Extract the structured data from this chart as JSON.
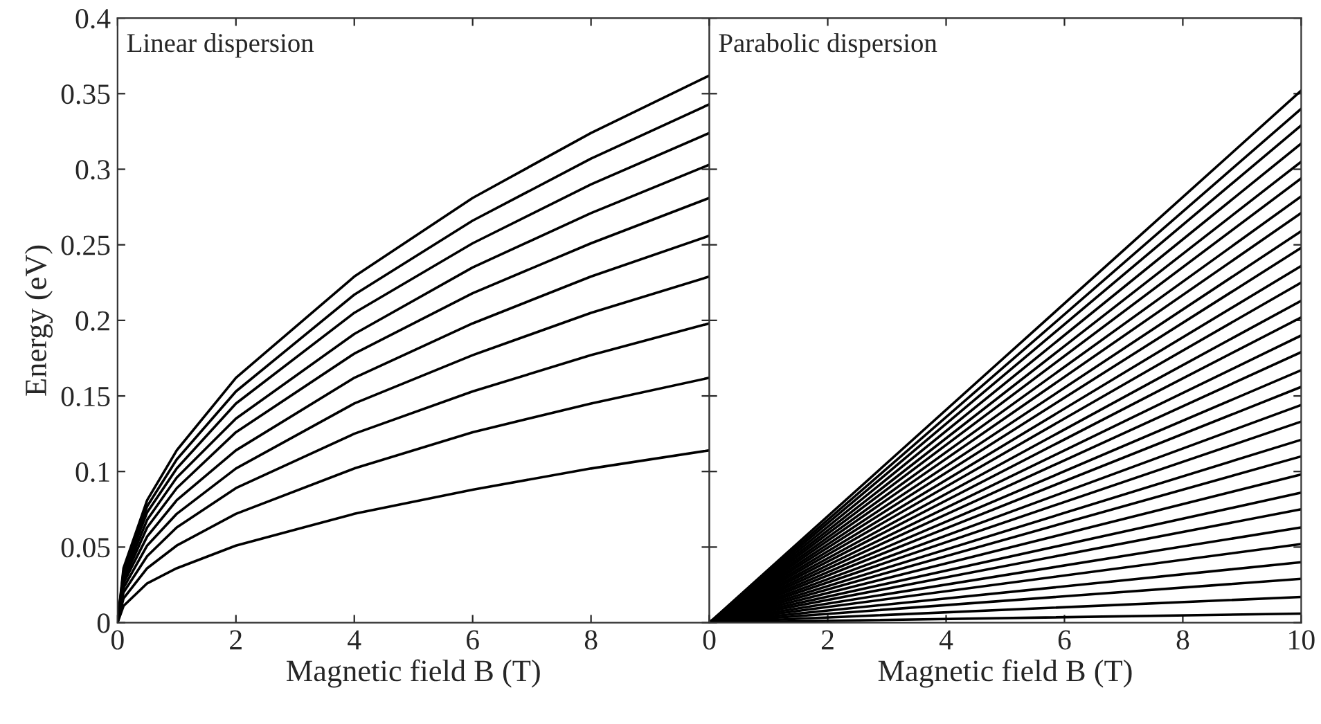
{
  "chart_data": [
    {
      "type": "line",
      "title": "Linear dispersion",
      "xlabel": "Magnetic field B (T)",
      "ylabel": "Energy (eV)",
      "xlim": [
        0,
        10
      ],
      "ylim": [
        0,
        0.4
      ],
      "xticks": [
        0,
        2,
        4,
        6,
        8,
        {
          "value": 10,
          "label": null
        }
      ],
      "yticks": [
        0,
        0.05,
        0.1,
        0.15,
        0.2,
        0.25,
        0.3,
        0.35,
        0.4
      ],
      "grid": false,
      "legend": false,
      "marker": "none",
      "line_style": "solid",
      "x": [
        0,
        0.1,
        0.5,
        1,
        2,
        4,
        6,
        8,
        10
      ],
      "series": [
        {
          "color": "#000000",
          "values": [
            0,
            0.011,
            0.026,
            0.036,
            0.051,
            0.072,
            0.088,
            0.102,
            0.114
          ]
        },
        {
          "color": "#000000",
          "values": [
            0,
            0.016,
            0.036,
            0.051,
            0.072,
            0.102,
            0.126,
            0.145,
            0.162
          ]
        },
        {
          "color": "#000000",
          "values": [
            0,
            0.02,
            0.044,
            0.063,
            0.089,
            0.125,
            0.153,
            0.177,
            0.198
          ]
        },
        {
          "color": "#000000",
          "values": [
            0,
            0.023,
            0.051,
            0.072,
            0.102,
            0.145,
            0.177,
            0.205,
            0.229
          ]
        },
        {
          "color": "#000000",
          "values": [
            0,
            0.026,
            0.057,
            0.081,
            0.114,
            0.162,
            0.198,
            0.229,
            0.256
          ]
        },
        {
          "color": "#000000",
          "values": [
            0,
            0.028,
            0.063,
            0.089,
            0.126,
            0.178,
            0.218,
            0.251,
            0.281
          ]
        },
        {
          "color": "#000000",
          "values": [
            0,
            0.03,
            0.068,
            0.096,
            0.135,
            0.191,
            0.235,
            0.271,
            0.303
          ]
        },
        {
          "color": "#000000",
          "values": [
            0,
            0.032,
            0.073,
            0.102,
            0.145,
            0.205,
            0.251,
            0.29,
            0.324
          ]
        },
        {
          "color": "#000000",
          "values": [
            0,
            0.034,
            0.077,
            0.108,
            0.153,
            0.217,
            0.266,
            0.307,
            0.343
          ]
        },
        {
          "color": "#000000",
          "values": [
            0,
            0.036,
            0.081,
            0.114,
            0.162,
            0.229,
            0.281,
            0.324,
            0.362
          ]
        }
      ]
    },
    {
      "type": "line",
      "title": "Parabolic dispersion",
      "xlabel": "Magnetic field B (T)",
      "xlim": [
        0,
        10
      ],
      "ylim": [
        0,
        0.4
      ],
      "xticks": [
        0,
        2,
        4,
        6,
        8,
        10
      ],
      "yticks": [
        0,
        0.05,
        0.1,
        0.15,
        0.2,
        0.25,
        0.3,
        0.35,
        0.4
      ],
      "tick_labels": "x",
      "grid": false,
      "legend": false,
      "marker": "none",
      "line_style": "solid",
      "x": [
        0,
        10
      ],
      "series": [
        {
          "color": "#000000",
          "values": [
            0,
            0.006
          ]
        },
        {
          "color": "#000000",
          "values": [
            0,
            0.017
          ]
        },
        {
          "color": "#000000",
          "values": [
            0,
            0.029
          ]
        },
        {
          "color": "#000000",
          "values": [
            0,
            0.04
          ]
        },
        {
          "color": "#000000",
          "values": [
            0,
            0.052
          ]
        },
        {
          "color": "#000000",
          "values": [
            0,
            0.063
          ]
        },
        {
          "color": "#000000",
          "values": [
            0,
            0.075
          ]
        },
        {
          "color": "#000000",
          "values": [
            0,
            0.086
          ]
        },
        {
          "color": "#000000",
          "values": [
            0,
            0.098
          ]
        },
        {
          "color": "#000000",
          "values": [
            0,
            0.11
          ]
        },
        {
          "color": "#000000",
          "values": [
            0,
            0.121
          ]
        },
        {
          "color": "#000000",
          "values": [
            0,
            0.133
          ]
        },
        {
          "color": "#000000",
          "values": [
            0,
            0.144
          ]
        },
        {
          "color": "#000000",
          "values": [
            0,
            0.156
          ]
        },
        {
          "color": "#000000",
          "values": [
            0,
            0.167
          ]
        },
        {
          "color": "#000000",
          "values": [
            0,
            0.179
          ]
        },
        {
          "color": "#000000",
          "values": [
            0,
            0.19
          ]
        },
        {
          "color": "#000000",
          "values": [
            0,
            0.202
          ]
        },
        {
          "color": "#000000",
          "values": [
            0,
            0.213
          ]
        },
        {
          "color": "#000000",
          "values": [
            0,
            0.225
          ]
        },
        {
          "color": "#000000",
          "values": [
            0,
            0.236
          ]
        },
        {
          "color": "#000000",
          "values": [
            0,
            0.248
          ]
        },
        {
          "color": "#000000",
          "values": [
            0,
            0.259
          ]
        },
        {
          "color": "#000000",
          "values": [
            0,
            0.271
          ]
        },
        {
          "color": "#000000",
          "values": [
            0,
            0.282
          ]
        },
        {
          "color": "#000000",
          "values": [
            0,
            0.294
          ]
        },
        {
          "color": "#000000",
          "values": [
            0,
            0.305
          ]
        },
        {
          "color": "#000000",
          "values": [
            0,
            0.317
          ]
        },
        {
          "color": "#000000",
          "values": [
            0,
            0.329
          ]
        },
        {
          "color": "#000000",
          "values": [
            0,
            0.34
          ]
        },
        {
          "color": "#000000",
          "values": [
            0,
            0.352
          ]
        }
      ]
    }
  ]
}
